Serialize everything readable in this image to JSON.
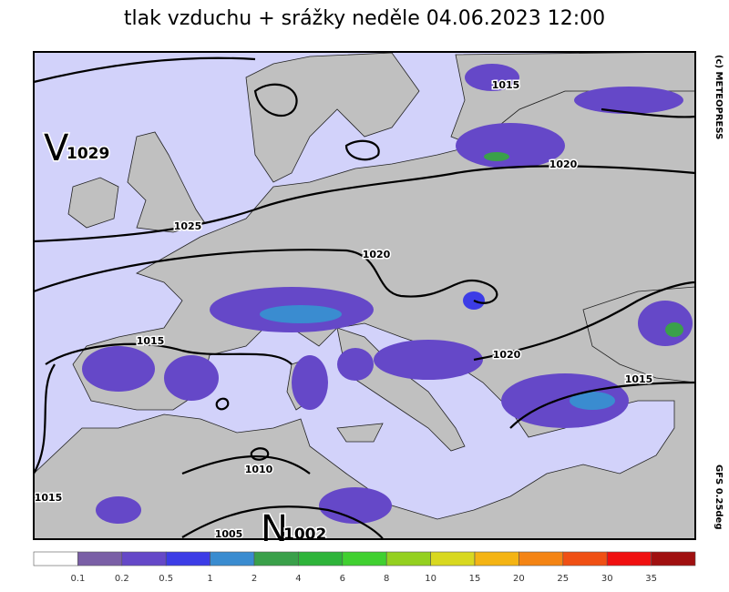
{
  "title": "tlak vzduchu + srážky  neděle 04.06.2023 12:00",
  "credit": "(c) METEOPRESS",
  "model": "GFS 0.25deg",
  "centers": [
    {
      "letter": "V",
      "value": 1029
    },
    {
      "letter": "N",
      "value": 1002
    }
  ],
  "isobar_labels": [
    1015,
    1020,
    1025,
    1020,
    1015,
    1020,
    1015,
    1010,
    1005,
    1015
  ],
  "legend": {
    "colors": [
      "#ffffff",
      "#7a5fa6",
      "#6548c8",
      "#3c3ce6",
      "#3a8cd0",
      "#3aa04a",
      "#2eb43a",
      "#40d030",
      "#94d020",
      "#d8d820",
      "#f4b414",
      "#f48414",
      "#f05014",
      "#f01010",
      "#a01010"
    ],
    "labels": [
      "0.1",
      "0.2",
      "0.5",
      "1",
      "2",
      "4",
      "6",
      "8",
      "10",
      "15",
      "20",
      "25",
      "30",
      "35"
    ]
  }
}
